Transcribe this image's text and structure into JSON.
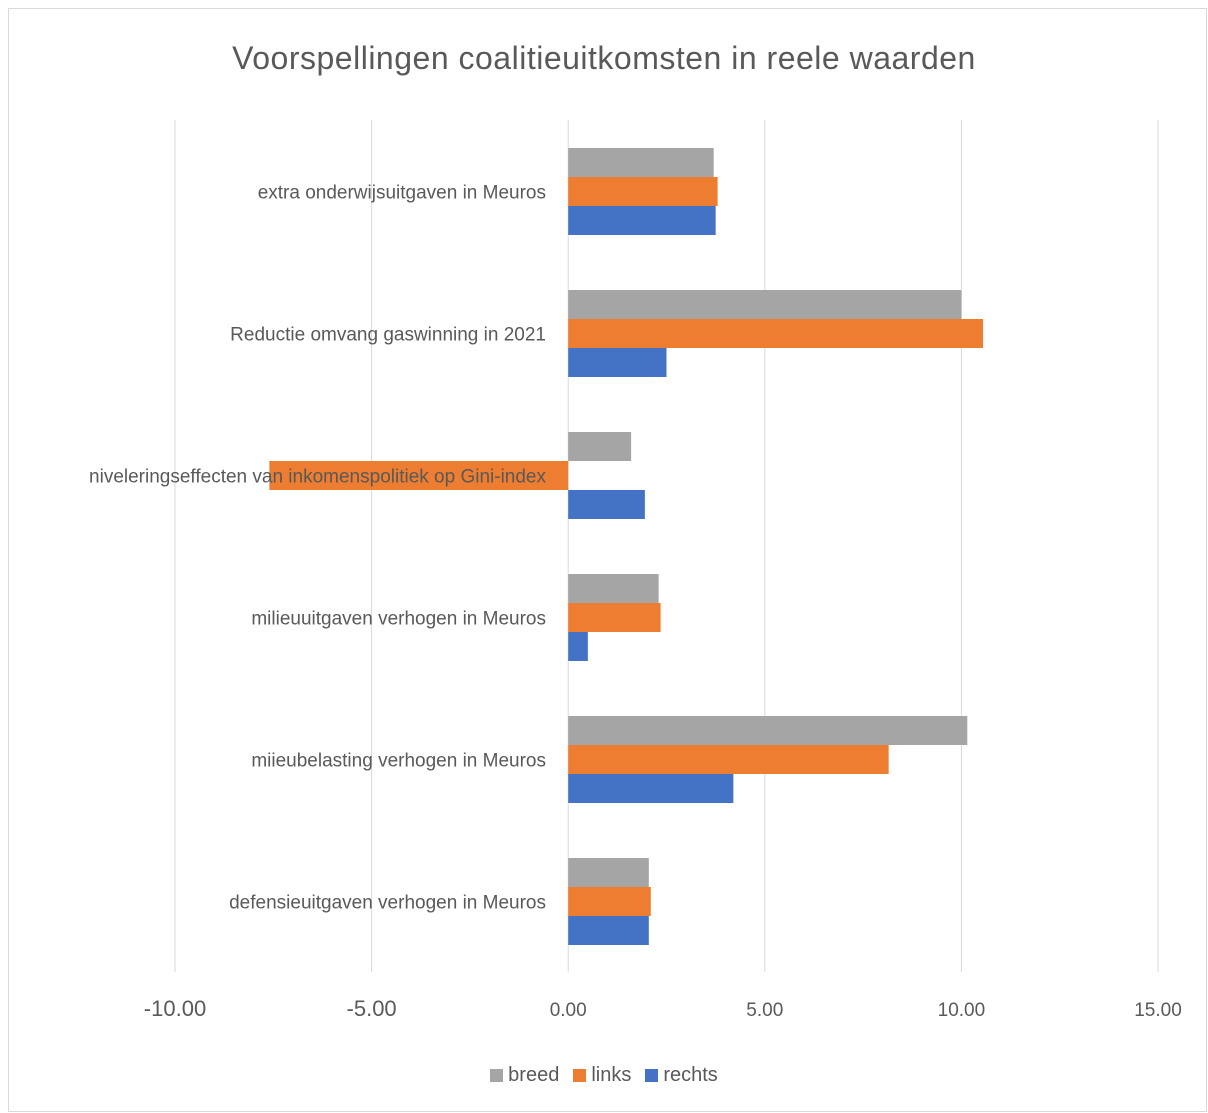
{
  "chart_data": {
    "type": "bar",
    "orientation": "horizontal",
    "title": "Voorspellingen coalitieuitkomsten in reele waarden",
    "categories": [
      "extra onderwijsuitgaven in Meuros",
      "Reductie omvang gaswinning in 2021",
      "niveleringseffecten van inkomenspolitiek op Gini-index",
      "milieuuitgaven verhogen in Meuros",
      "miieubelasting verhogen in Meuros",
      "defensieuitgaven verhogen in Meuros"
    ],
    "series": [
      {
        "name": "breed",
        "color": "#a5a5a5",
        "values": [
          3.7,
          10.0,
          1.6,
          2.3,
          10.15,
          2.05
        ]
      },
      {
        "name": "links",
        "color": "#ed7d31",
        "values": [
          3.8,
          10.55,
          -7.6,
          2.35,
          8.15,
          2.1
        ]
      },
      {
        "name": "rechts",
        "color": "#4472c4",
        "values": [
          3.75,
          2.5,
          1.95,
          0.5,
          4.2,
          2.05
        ]
      }
    ],
    "xlim": [
      -10,
      15
    ],
    "xticks": [
      "-10.00",
      "-5.00",
      "0.00",
      "5.00",
      "10.00",
      "15.00"
    ],
    "grid": true,
    "legend_position": "bottom"
  }
}
